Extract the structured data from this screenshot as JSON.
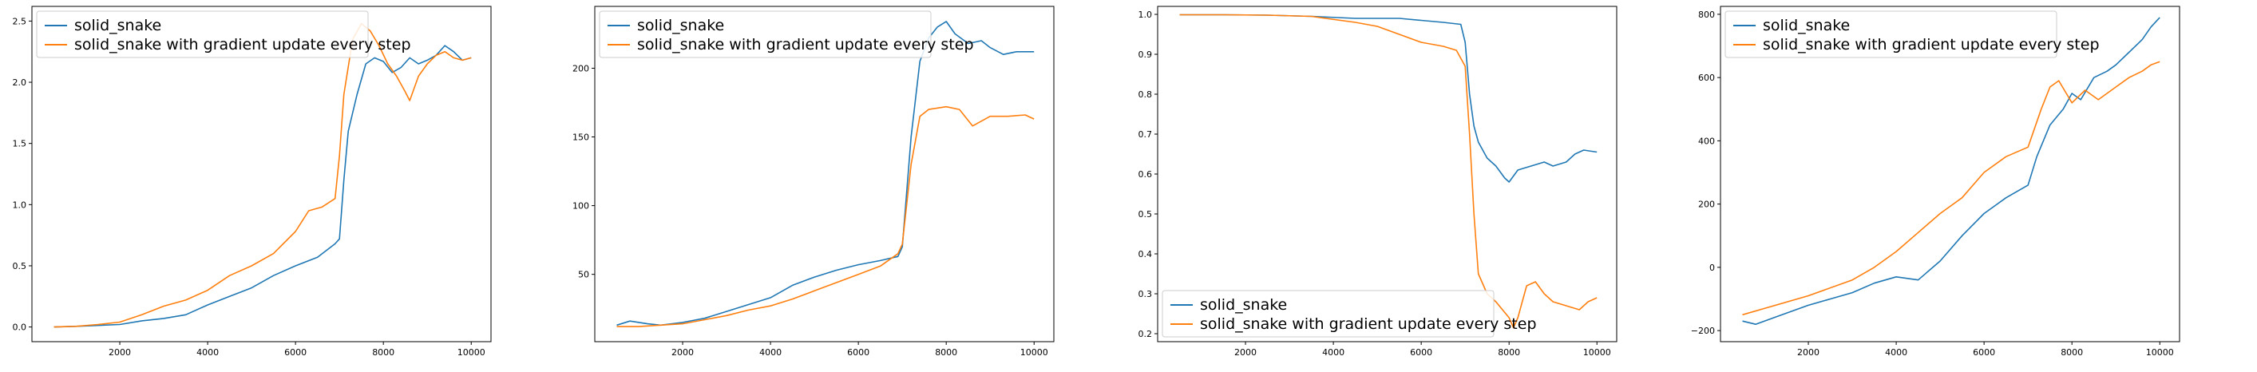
{
  "colors": {
    "series_0": "#1f77b4",
    "series_1": "#ff7f0e"
  },
  "chart_data": [
    {
      "type": "line",
      "title": "",
      "xlabel": "",
      "ylabel": "",
      "xlim": [
        0,
        10450
      ],
      "ylim": [
        -0.12,
        2.62
      ],
      "xticks": [
        2000,
        4000,
        6000,
        8000,
        10000
      ],
      "yticks": [
        0.0,
        0.5,
        1.0,
        1.5,
        2.0,
        2.5
      ],
      "ytick_labels": [
        "0.0",
        "0.5",
        "1.0",
        "1.5",
        "2.0",
        "2.5"
      ],
      "legend_loc": "upper-left",
      "series": [
        {
          "name": "solid_snake",
          "points": [
            [
              500,
              0
            ],
            [
              1000,
              0.005
            ],
            [
              2000,
              0.02
            ],
            [
              2500,
              0.05
            ],
            [
              3000,
              0.07
            ],
            [
              3500,
              0.1
            ],
            [
              4000,
              0.18
            ],
            [
              4500,
              0.25
            ],
            [
              5000,
              0.32
            ],
            [
              5500,
              0.42
            ],
            [
              6000,
              0.5
            ],
            [
              6500,
              0.57
            ],
            [
              6900,
              0.68
            ],
            [
              7000,
              0.72
            ],
            [
              7100,
              1.2
            ],
            [
              7200,
              1.6
            ],
            [
              7400,
              1.9
            ],
            [
              7600,
              2.15
            ],
            [
              7800,
              2.2
            ],
            [
              8000,
              2.17
            ],
            [
              8200,
              2.08
            ],
            [
              8400,
              2.12
            ],
            [
              8600,
              2.2
            ],
            [
              8800,
              2.15
            ],
            [
              9000,
              2.18
            ],
            [
              9200,
              2.22
            ],
            [
              9400,
              2.3
            ],
            [
              9600,
              2.25
            ],
            [
              9800,
              2.18
            ],
            [
              10000,
              2.2
            ]
          ]
        },
        {
          "name": "solid_snake with gradient update every step",
          "points": [
            [
              500,
              0
            ],
            [
              1000,
              0.005
            ],
            [
              1500,
              0.02
            ],
            [
              2000,
              0.04
            ],
            [
              2500,
              0.1
            ],
            [
              3000,
              0.17
            ],
            [
              3500,
              0.22
            ],
            [
              4000,
              0.3
            ],
            [
              4500,
              0.42
            ],
            [
              5000,
              0.5
            ],
            [
              5500,
              0.6
            ],
            [
              6000,
              0.78
            ],
            [
              6300,
              0.95
            ],
            [
              6600,
              0.98
            ],
            [
              6900,
              1.05
            ],
            [
              7000,
              1.4
            ],
            [
              7100,
              1.9
            ],
            [
              7300,
              2.35
            ],
            [
              7500,
              2.48
            ],
            [
              7700,
              2.42
            ],
            [
              7900,
              2.3
            ],
            [
              8100,
              2.15
            ],
            [
              8300,
              2.05
            ],
            [
              8500,
              1.92
            ],
            [
              8600,
              1.85
            ],
            [
              8800,
              2.05
            ],
            [
              9000,
              2.15
            ],
            [
              9200,
              2.22
            ],
            [
              9400,
              2.25
            ],
            [
              9600,
              2.2
            ],
            [
              9800,
              2.18
            ],
            [
              10000,
              2.2
            ]
          ]
        }
      ]
    },
    {
      "type": "line",
      "title": "",
      "xlabel": "",
      "ylabel": "",
      "xlim": [
        0,
        10450
      ],
      "ylim": [
        1,
        245
      ],
      "xticks": [
        2000,
        4000,
        6000,
        8000,
        10000
      ],
      "yticks": [
        50,
        100,
        150,
        200
      ],
      "ytick_labels": [
        "50",
        "100",
        "150",
        "200"
      ],
      "legend_loc": "upper-left",
      "series": [
        {
          "name": "solid_snake",
          "points": [
            [
              500,
              13
            ],
            [
              800,
              16
            ],
            [
              1200,
              14
            ],
            [
              1500,
              13
            ],
            [
              2000,
              15
            ],
            [
              2500,
              18
            ],
            [
              3000,
              23
            ],
            [
              3500,
              28
            ],
            [
              4000,
              33
            ],
            [
              4500,
              42
            ],
            [
              5000,
              48
            ],
            [
              5500,
              53
            ],
            [
              6000,
              57
            ],
            [
              6500,
              60
            ],
            [
              6900,
              63
            ],
            [
              7000,
              70
            ],
            [
              7200,
              150
            ],
            [
              7400,
              205
            ],
            [
              7600,
              222
            ],
            [
              7800,
              230
            ],
            [
              8000,
              234
            ],
            [
              8200,
              225
            ],
            [
              8500,
              218
            ],
            [
              8800,
              220
            ],
            [
              9000,
              215
            ],
            [
              9300,
              210
            ],
            [
              9600,
              212
            ],
            [
              10000,
              212
            ]
          ]
        },
        {
          "name": "solid_snake with gradient update every step",
          "points": [
            [
              500,
              12
            ],
            [
              1000,
              12
            ],
            [
              1500,
              13
            ],
            [
              2000,
              14
            ],
            [
              2500,
              17
            ],
            [
              3000,
              20
            ],
            [
              3500,
              24
            ],
            [
              4000,
              27
            ],
            [
              4500,
              32
            ],
            [
              5000,
              38
            ],
            [
              5500,
              44
            ],
            [
              6000,
              50
            ],
            [
              6500,
              56
            ],
            [
              6900,
              65
            ],
            [
              7000,
              72
            ],
            [
              7200,
              130
            ],
            [
              7400,
              165
            ],
            [
              7600,
              170
            ],
            [
              8000,
              172
            ],
            [
              8300,
              170
            ],
            [
              8600,
              158
            ],
            [
              9000,
              165
            ],
            [
              9400,
              165
            ],
            [
              9800,
              166
            ],
            [
              10000,
              163
            ]
          ]
        }
      ]
    },
    {
      "type": "line",
      "title": "",
      "xlabel": "",
      "ylabel": "",
      "xlim": [
        0,
        10450
      ],
      "ylim": [
        0.18,
        1.02
      ],
      "xticks": [
        2000,
        4000,
        6000,
        8000,
        10000
      ],
      "yticks": [
        0.2,
        0.3,
        0.4,
        0.5,
        0.6,
        0.7,
        0.8,
        0.9,
        1.0
      ],
      "ytick_labels": [
        "0.2",
        "0.3",
        "0.4",
        "0.5",
        "0.6",
        "0.7",
        "0.8",
        "0.9",
        "1.0"
      ],
      "legend_loc": "lower-left",
      "series": [
        {
          "name": "solid_snake",
          "points": [
            [
              500,
              0.999
            ],
            [
              1500,
              0.999
            ],
            [
              2500,
              0.998
            ],
            [
              3500,
              0.995
            ],
            [
              4500,
              0.99
            ],
            [
              5500,
              0.99
            ],
            [
              6000,
              0.985
            ],
            [
              6500,
              0.98
            ],
            [
              6900,
              0.975
            ],
            [
              7000,
              0.93
            ],
            [
              7100,
              0.8
            ],
            [
              7200,
              0.72
            ],
            [
              7300,
              0.68
            ],
            [
              7500,
              0.64
            ],
            [
              7700,
              0.62
            ],
            [
              7900,
              0.59
            ],
            [
              8000,
              0.58
            ],
            [
              8200,
              0.61
            ],
            [
              8500,
              0.62
            ],
            [
              8800,
              0.63
            ],
            [
              9000,
              0.62
            ],
            [
              9300,
              0.63
            ],
            [
              9500,
              0.65
            ],
            [
              9700,
              0.66
            ],
            [
              10000,
              0.655
            ]
          ]
        },
        {
          "name": "solid_snake with gradient update every step",
          "points": [
            [
              500,
              0.999
            ],
            [
              1500,
              0.999
            ],
            [
              2500,
              0.998
            ],
            [
              3500,
              0.995
            ],
            [
              4500,
              0.98
            ],
            [
              5000,
              0.97
            ],
            [
              5500,
              0.95
            ],
            [
              6000,
              0.93
            ],
            [
              6500,
              0.92
            ],
            [
              6800,
              0.91
            ],
            [
              7000,
              0.87
            ],
            [
              7100,
              0.7
            ],
            [
              7200,
              0.5
            ],
            [
              7300,
              0.35
            ],
            [
              7500,
              0.3
            ],
            [
              7700,
              0.28
            ],
            [
              8000,
              0.24
            ],
            [
              8100,
              0.215
            ],
            [
              8200,
              0.24
            ],
            [
              8400,
              0.32
            ],
            [
              8600,
              0.33
            ],
            [
              8800,
              0.3
            ],
            [
              9000,
              0.28
            ],
            [
              9300,
              0.27
            ],
            [
              9600,
              0.26
            ],
            [
              9800,
              0.28
            ],
            [
              10000,
              0.29
            ]
          ]
        }
      ]
    },
    {
      "type": "line",
      "title": "",
      "xlabel": "",
      "ylabel": "",
      "xlim": [
        0,
        10450
      ],
      "ylim": [
        -235,
        825
      ],
      "xticks": [
        2000,
        4000,
        6000,
        8000,
        10000
      ],
      "yticks": [
        -200,
        0,
        200,
        400,
        600,
        800
      ],
      "ytick_labels": [
        "−200",
        "0",
        "200",
        "400",
        "600",
        "800"
      ],
      "legend_loc": "upper-left",
      "series": [
        {
          "name": "solid_snake",
          "points": [
            [
              500,
              -170
            ],
            [
              800,
              -180
            ],
            [
              1200,
              -160
            ],
            [
              2000,
              -120
            ],
            [
              2500,
              -100
            ],
            [
              3000,
              -80
            ],
            [
              3500,
              -50
            ],
            [
              4000,
              -30
            ],
            [
              4500,
              -40
            ],
            [
              5000,
              20
            ],
            [
              5500,
              100
            ],
            [
              6000,
              170
            ],
            [
              6500,
              220
            ],
            [
              7000,
              260
            ],
            [
              7200,
              350
            ],
            [
              7500,
              450
            ],
            [
              7800,
              500
            ],
            [
              8000,
              550
            ],
            [
              8200,
              530
            ],
            [
              8500,
              600
            ],
            [
              8800,
              620
            ],
            [
              9000,
              640
            ],
            [
              9300,
              680
            ],
            [
              9600,
              720
            ],
            [
              9800,
              760
            ],
            [
              10000,
              790
            ]
          ]
        },
        {
          "name": "solid_snake with gradient update every step",
          "points": [
            [
              500,
              -150
            ],
            [
              1000,
              -130
            ],
            [
              2000,
              -90
            ],
            [
              3000,
              -40
            ],
            [
              3500,
              0
            ],
            [
              4000,
              50
            ],
            [
              4500,
              110
            ],
            [
              5000,
              170
            ],
            [
              5500,
              220
            ],
            [
              6000,
              300
            ],
            [
              6500,
              350
            ],
            [
              7000,
              380
            ],
            [
              7300,
              500
            ],
            [
              7500,
              570
            ],
            [
              7700,
              590
            ],
            [
              8000,
              520
            ],
            [
              8300,
              560
            ],
            [
              8600,
              530
            ],
            [
              9000,
              570
            ],
            [
              9300,
              600
            ],
            [
              9600,
              620
            ],
            [
              9800,
              640
            ],
            [
              10000,
              650
            ]
          ]
        }
      ]
    }
  ]
}
